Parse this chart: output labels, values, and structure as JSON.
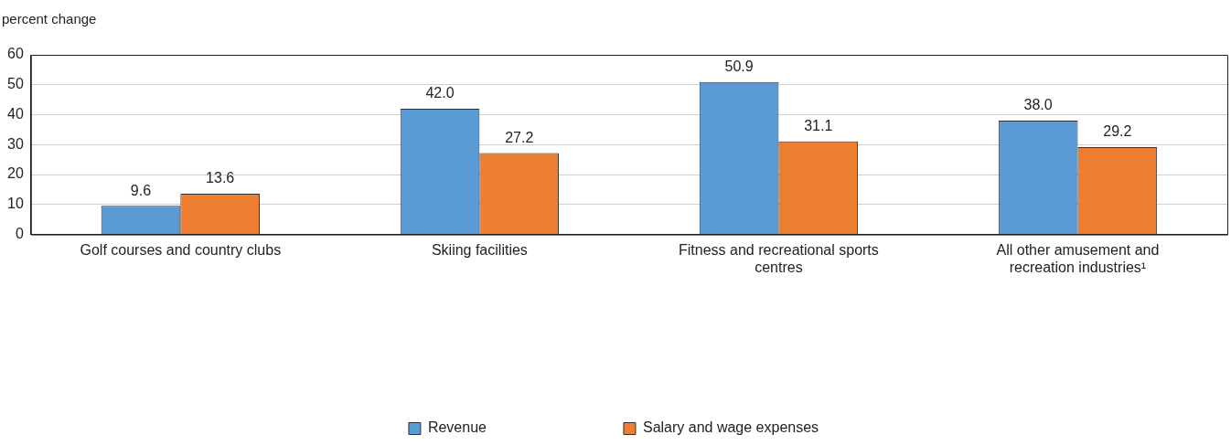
{
  "chart_data": {
    "type": "bar",
    "ylabel": "percent change",
    "categories": [
      "Golf courses and country clubs",
      "Skiing facilities",
      "Fitness and recreational sports centres",
      "All other amusement and recreation industries¹"
    ],
    "series": [
      {
        "name": "Revenue",
        "color": "#5b9bd5",
        "values": [
          9.6,
          42.0,
          50.9,
          38.0
        ],
        "value_labels": [
          "9.6",
          "42.0",
          "50.9",
          "38.0"
        ]
      },
      {
        "name": "Salary and wage expenses",
        "color": "#ed7d31",
        "values": [
          13.6,
          27.2,
          31.1,
          29.2
        ],
        "value_labels": [
          "13.6",
          "27.2",
          "31.1",
          "29.2"
        ]
      }
    ],
    "ylim": [
      0,
      60
    ],
    "yticks": [
      0,
      10,
      20,
      30,
      40,
      50,
      60
    ],
    "grid": "y",
    "legend": "bottom"
  }
}
